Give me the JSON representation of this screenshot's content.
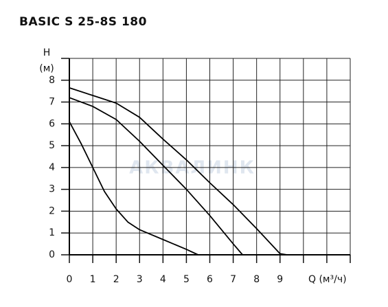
{
  "chart_data": {
    "type": "line",
    "title": "BASIC S 25-8S 180",
    "ylabel": "H",
    "yunit": "(м)",
    "xlabel": "Q (м³/ч)",
    "watermark": "АКВАЛИНК",
    "xlim": [
      0,
      12
    ],
    "ylim": [
      0,
      9
    ],
    "xticks": [
      0,
      1,
      2,
      3,
      4,
      5,
      6,
      7,
      8,
      9,
      {
        "value": 10,
        "label": null
      },
      {
        "value": 11,
        "label": null
      },
      {
        "value": 12,
        "label": null
      }
    ],
    "yticks": [
      0,
      1,
      2,
      3,
      4,
      5,
      6,
      7,
      8,
      {
        "value": 9,
        "label": null
      }
    ],
    "grid": true,
    "series": [
      {
        "color": "#000000",
        "x": [
          0,
          0.5,
          1,
          1.5,
          2,
          2.5,
          3,
          4,
          5,
          5.5
        ],
        "values": [
          6.1,
          5.1,
          4.0,
          2.9,
          2.1,
          1.5,
          1.15,
          0.7,
          0.25,
          0
        ]
      },
      {
        "color": "#000000",
        "x": [
          0,
          1,
          2,
          3,
          4,
          5,
          6,
          7,
          7.4
        ],
        "values": [
          7.2,
          6.8,
          6.2,
          5.2,
          4.1,
          3.0,
          1.8,
          0.5,
          0
        ]
      },
      {
        "color": "#000000",
        "x": [
          0,
          1,
          2,
          3,
          4,
          5,
          6,
          7,
          8,
          9,
          9.3
        ],
        "values": [
          7.65,
          7.3,
          6.95,
          6.3,
          5.3,
          4.35,
          3.3,
          2.3,
          1.2,
          0.05,
          0
        ]
      }
    ]
  }
}
